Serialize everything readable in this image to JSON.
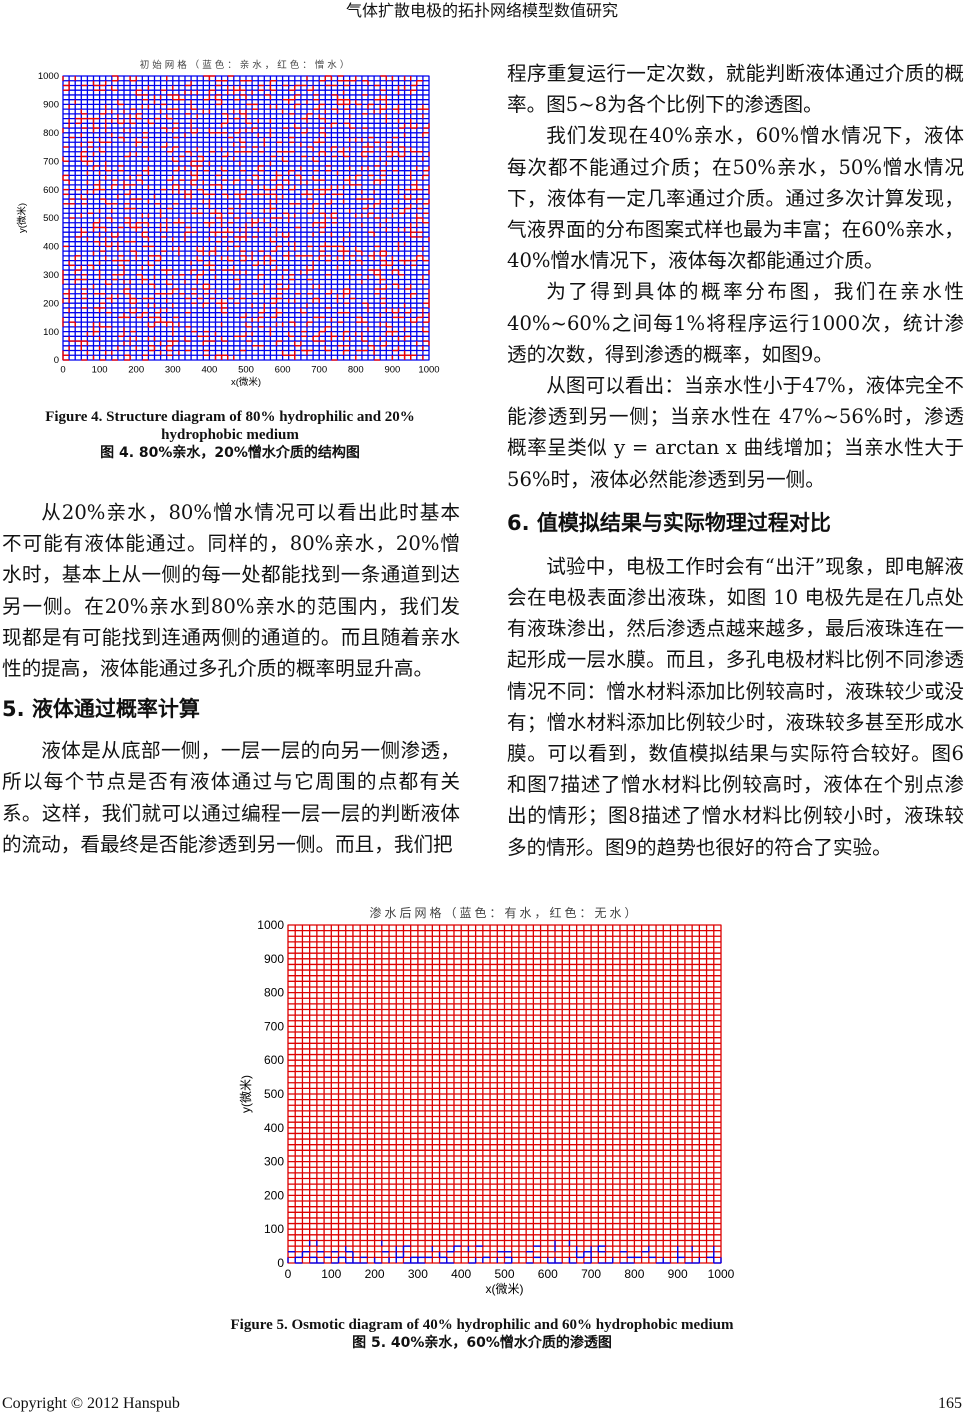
{
  "header": {
    "running_title": "气体扩散电极的拓扑网络模型数值研究"
  },
  "figure4": {
    "caption_en": "Figure 4. Structure diagram of 80% hydrophilic and 20% hydrophobic medium",
    "caption_zh": "图 4. 80%亲水，20%憎水介质的结构图"
  },
  "figure5": {
    "caption_en": "Figure 5. Osmotic diagram of 40% hydrophilic and 60% hydrophobic medium",
    "caption_zh": "图 5. 40%亲水，60%憎水介质的渗透图"
  },
  "chart_data": [
    {
      "type": "heatmap",
      "title": "初始网格（蓝色：亲水，红色：憎水）",
      "xlabel": "x(微米)",
      "ylabel": "y(微米)",
      "xlim": [
        0,
        1000
      ],
      "ylim": [
        0,
        1000
      ],
      "xticks": [
        "0",
        "100",
        "200",
        "300",
        "400",
        "500",
        "600",
        "700",
        "800",
        "900",
        "1000"
      ],
      "yticks": [
        "0",
        "100",
        "200",
        "300",
        "400",
        "500",
        "600",
        "700",
        "800",
        "900",
        "1000"
      ],
      "hydrophilic_fraction": 0.8,
      "colors": {
        "blue": "#0000ee",
        "red": "#ee0000"
      }
    },
    {
      "type": "heatmap",
      "title": "渗水后网格（蓝色：有水，红色：无水）",
      "xlabel": "x(微米)",
      "ylabel": "y(微米)",
      "xlim": [
        0,
        1000
      ],
      "ylim": [
        0,
        1000
      ],
      "xticks": [
        "0",
        "100",
        "200",
        "300",
        "400",
        "500",
        "600",
        "700",
        "800",
        "900",
        "1000"
      ],
      "yticks": [
        "0",
        "100",
        "200",
        "300",
        "400",
        "500",
        "600",
        "700",
        "800",
        "900",
        "1000"
      ],
      "hydrophilic_fraction": 0.4,
      "colors": {
        "blue": "#0000ee",
        "red": "#dd0000"
      }
    }
  ],
  "left": {
    "p1": "从20%亲水，80%憎水情况可以看出此时基本不可能有液体能通过。同样的，80%亲水，20%憎水时，基本上从一侧的每一处都能找到一条通道到达另一侧。在20%亲水到80%亲水的范围内，我们发现都是有可能找到连通两侧的通道的。而且随着亲水性的提高，液体能通过多孔介质的概率明显升高。",
    "h5": "5.  液体通过概率计算",
    "p2": "液体是从底部一侧，一层一层的向另一侧渗透，所以每个节点是否有液体通过与它周围的点都有关系。这样，我们就可以通过编程一层一层的判断液体的流动，看最终是否能渗透到另一侧。而且，我们把"
  },
  "right": {
    "p0": "程序重复运行一定次数，就能判断液体通过介质的概率。图5~8为各个比例下的渗透图。",
    "p1": "我们发现在40%亲水，60%憎水情况下，液体每次都不能通过介质；在50%亲水，50%憎水情况下，液体有一定几率通过介质。通过多次计算发现，气液界面的分布图案式样也最为丰富；在60%亲水，40%憎水情况下，液体每次都能通过介质。",
    "p2": "为了得到具体的概率分布图，我们在亲水性40%~60%之间每1%将程序运行1000次，统计渗透的次数，得到渗透的概率，如图9。",
    "p3": "从图可以看出：当亲水性小于47%，液体完全不能渗透到另一侧；当亲水性在 47%~56%时，渗透概率呈类似 y = arctan x 曲线增加；当亲水性大于 56%时，液体必然能渗透到另一侧。",
    "h6": "6.  值模拟结果与实际物理过程对比",
    "p4": "试验中，电极工作时会有“出汗”现象，即电解液会在电极表面渗出液珠，如图 10 电极先是在几点处有液珠渗出，然后渗透点越来越多，最后液珠连在一起形成一层水膜。而且，多孔电极材料比例不同渗透情况不同：憎水材料添加比例较高时，液珠较少或没有；憎水材料添加比例较少时，液珠较多甚至形成水膜。可以看到，数值模拟结果与实际符合较好。图6和图7描述了憎水材料比例较高时，液体在个别点渗出的情形；图8描述了憎水材料比例较小时，液珠较多的情形。图9的趋势也很好的符合了实验。"
  },
  "footer": {
    "copyright": "Copyright © 2012 Hanspub",
    "page_number": "165"
  }
}
